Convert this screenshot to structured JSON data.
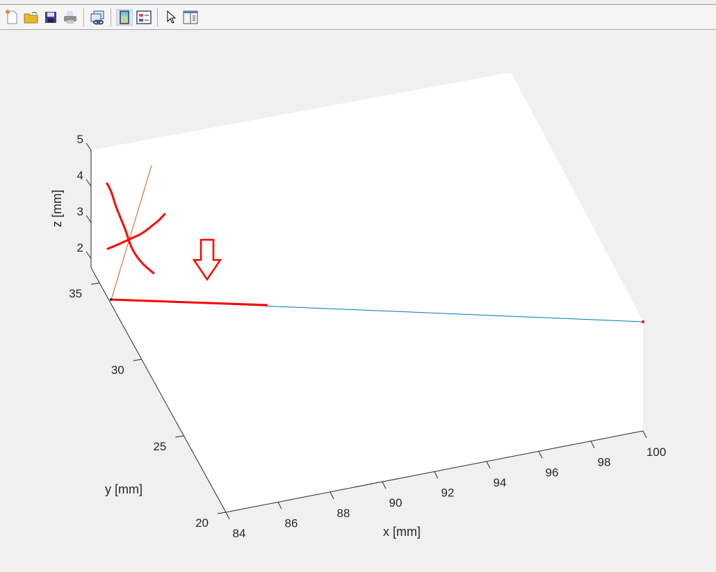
{
  "toolbar": {
    "items": [
      {
        "name": "new-figure",
        "icon": "new-file-icon"
      },
      {
        "name": "open-file",
        "icon": "folder-open-icon"
      },
      {
        "name": "save",
        "icon": "save-disk-icon"
      },
      {
        "name": "print",
        "icon": "printer-icon"
      },
      {
        "name": "link-plot",
        "icon": "link-windows-icon"
      },
      {
        "name": "colorbar",
        "icon": "colorbar-icon",
        "active": true
      },
      {
        "name": "legend",
        "icon": "legend-icon"
      },
      {
        "name": "edit-plot",
        "icon": "arrow-cursor-icon"
      },
      {
        "name": "property-inspector",
        "icon": "panel-icon"
      }
    ]
  },
  "chart_data": {
    "type": "line",
    "dimensions": 3,
    "xlabel": "x [mm]",
    "ylabel": "y [mm]",
    "zlabel": "z [mm]",
    "xticks": [
      "84",
      "86",
      "88",
      "90",
      "92",
      "94",
      "96",
      "98",
      "100"
    ],
    "yticks": [
      "20",
      "25",
      "30",
      "35"
    ],
    "zticks": [
      "2",
      "3",
      "4",
      "5"
    ],
    "xlim": [
      84,
      100
    ],
    "ylim": [
      20,
      36
    ],
    "zlim": [
      1.5,
      5
    ],
    "grid": false,
    "series_colors": {
      "line": "#0072bd",
      "thin_line": "#d95319",
      "marker": "#ff0000"
    }
  },
  "annotations": {
    "color": "#ff0000",
    "marks": [
      "x-cross-scribble",
      "down-arrow",
      "underline-highlight"
    ]
  }
}
